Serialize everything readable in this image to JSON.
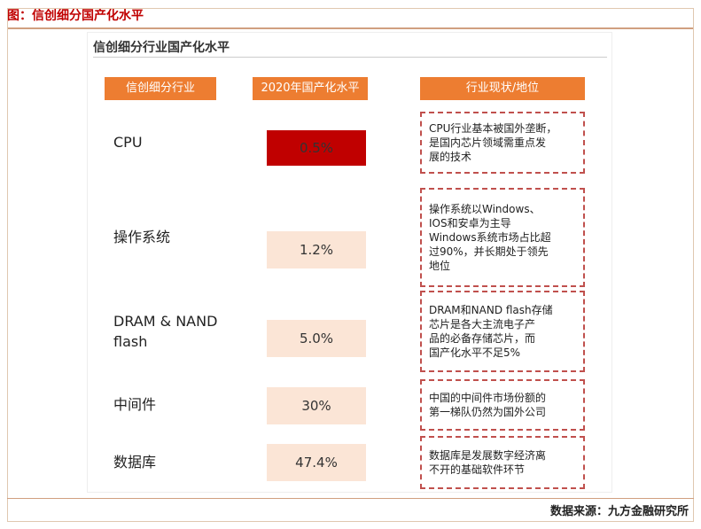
{
  "header": {
    "title": "图：信创细分国产化水平"
  },
  "figure": {
    "title": "信创细分行业国产化水平",
    "columns": [
      "信创细分行业",
      "2020年国产化水平",
      "行业现状/地位"
    ],
    "rows": [
      {
        "industry": "CPU",
        "level": "0.5%",
        "status": [
          "CPU行业基本被国外垄断，",
          "是国内芯片领域需重点发",
          "展的技术"
        ]
      },
      {
        "industry": "操作系统",
        "level": "1.2%",
        "status": [
          "操作系统以Windows、",
          "IOS和安卓为主导",
          "Windows系统市场占比超",
          "过90%，并长期处于领先",
          "地位"
        ]
      },
      {
        "industry": "DRAM & NAND flash",
        "level": "5.0%",
        "status": [
          "DRAM和NAND flash存储",
          "芯片是各大主流电子产",
          "品的必备存储芯片，而",
          "国产化水平不足5%"
        ]
      },
      {
        "industry": "中间件",
        "level": "30%",
        "status": [
          "中国的中间件市场份额的",
          "第一梯队仍然为国外公司"
        ]
      },
      {
        "industry": "数据库",
        "level": "47.4%",
        "status": [
          "数据库是发展数字经济离",
          "不开的基础软件环节"
        ]
      }
    ]
  },
  "footer": {
    "source": "数据来源：九方金融研究所"
  }
}
